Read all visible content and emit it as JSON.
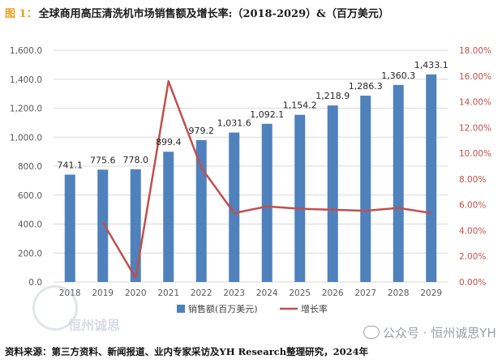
{
  "figure": {
    "number": "图 1",
    "colon": "：",
    "title": "全球商用高压清洗机市场销售额及增长率:（2018-2029）&（百万美元）"
  },
  "source_note": "资料来源：第三方资料、新闻报道、业内专家采访及YH Research整理研究，2024年",
  "watermark_text": "公众号 · 恒州诚思YH",
  "logo_text": "恒州诚思",
  "chart_data": {
    "type": "bar",
    "categories": [
      "2018",
      "2019",
      "2020",
      "2021",
      "2022",
      "2023",
      "2024",
      "2025",
      "2026",
      "2027",
      "2028",
      "2029"
    ],
    "series": [
      {
        "name": "销售额(百万美元)",
        "type": "bar",
        "axis": "left",
        "color": "#4f81bd",
        "values": [
          741.1,
          775.6,
          778.0,
          899.4,
          979.2,
          1031.6,
          1092.1,
          1154.2,
          1218.9,
          1286.3,
          1360.3,
          1433.1
        ],
        "labels": [
          "741.1",
          "775.6",
          "778.0",
          "899.4",
          "979.2",
          "1,031.6",
          "1,092.1",
          "1,154.2",
          "1,218.9",
          "1,286.3",
          "1,360.3",
          "1,433.1"
        ]
      },
      {
        "name": "增长率",
        "type": "line",
        "axis": "right",
        "color": "#c0504d",
        "values": [
          null,
          4.65,
          0.31,
          15.6,
          8.87,
          5.35,
          5.87,
          5.69,
          5.61,
          5.53,
          5.75,
          5.35
        ]
      }
    ],
    "y_left": {
      "min": 0,
      "max": 1600,
      "step": 200,
      "ticks": [
        "0.0",
        "200.0",
        "400.0",
        "600.0",
        "800.0",
        "1,000.0",
        "1,200.0",
        "1,400.0",
        "1,600.0"
      ]
    },
    "y_right": {
      "min": 0,
      "max": 18,
      "step": 2,
      "ticks": [
        "0.00%",
        "2.00%",
        "4.00%",
        "6.00%",
        "8.00%",
        "10.00%",
        "12.00%",
        "14.00%",
        "16.00%",
        "18.00%"
      ]
    },
    "grid": true,
    "legend_position": "bottom-center",
    "colors": {
      "grid": "#d9d9d9",
      "left_tick": "#595959",
      "right_tick": "#c0504d",
      "label": "#262626"
    }
  }
}
